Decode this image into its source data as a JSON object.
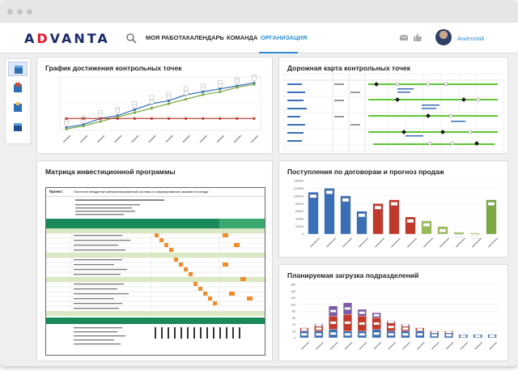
{
  "app": {
    "logo_text_a": "ADVANTA",
    "nav": [
      "МОЯ РАБОТА",
      "КАЛЕНДАРЬ",
      "КОМАНДА",
      "ОРГАНИЗАЦИЯ"
    ],
    "active_nav": "ОРГАНИЗАЦИЯ",
    "user_name": "Анатолий",
    "accent": "#2e8fcf"
  },
  "panels": {
    "milestones": {
      "title": "График достижения контрольных точек"
    },
    "roadmap": {
      "title": "Дорожная карта контрольных точек"
    },
    "investment": {
      "title": "Матрица инвестиционной программы",
      "project_label": "Проект:",
      "project_name": "Пилотное внедрение автоматизированной системы по формированию заказов на складе"
    },
    "contracts": {
      "title": "Поступления по договорам и прогноз продаж"
    },
    "workload": {
      "title": "Планируемая загрузка подразделений"
    }
  },
  "chart_data": [
    {
      "type": "line",
      "title": "График достижения контрольных точек",
      "series": [
        {
          "values": [
            1,
            2,
            4,
            5,
            7,
            9,
            10,
            12,
            13,
            14,
            15,
            16
          ]
        },
        {
          "values": [
            0.5,
            1.5,
            3,
            4.5,
            6,
            7.5,
            9,
            10.5,
            12,
            13,
            14.5,
            15.5
          ]
        },
        {
          "values": [
            4,
            4,
            4,
            4,
            4,
            4,
            4,
            4,
            4,
            4,
            4,
            4
          ]
        }
      ],
      "colors": [
        "#2f6fb5",
        "#7aa944",
        "#c0392b"
      ]
    },
    {
      "type": "bar",
      "title": "Поступления по договорам и прогноз продаж",
      "values": [
        110000,
        120000,
        100000,
        60000,
        80000,
        90000,
        45000,
        35000,
        20000,
        5000,
        3000,
        90000
      ],
      "colors": [
        "#3a6eb5",
        "#3a6eb5",
        "#3a6eb5",
        "#3a6eb5",
        "#c0392b",
        "#c0392b",
        "#c0392b",
        "#9bbb59",
        "#9bbb59",
        "#9bbb59",
        "#9bbb59",
        "#7aa944"
      ],
      "ylim": [
        0,
        140000
      ],
      "yticks": [
        "0",
        "20000",
        "40000",
        "60000",
        "80000",
        "100000",
        "120000",
        "140000"
      ]
    },
    {
      "type": "bar",
      "title": "Планируемая загрузка подразделений",
      "series": [
        {
          "values": [
            20,
            20,
            25,
            20,
            20,
            25,
            20,
            20,
            20,
            15,
            15,
            10,
            10,
            10
          ]
        },
        {
          "values": [
            10,
            15,
            40,
            50,
            45,
            35,
            25,
            15,
            10,
            5,
            5,
            0,
            0,
            0
          ]
        },
        {
          "values": [
            0,
            5,
            30,
            35,
            20,
            15,
            5,
            5,
            0,
            0,
            0,
            0,
            0,
            0
          ]
        }
      ],
      "colors": [
        "#3a6eb5",
        "#c0392b",
        "#7b5aa6"
      ],
      "ylim": [
        0,
        160
      ]
    }
  ]
}
